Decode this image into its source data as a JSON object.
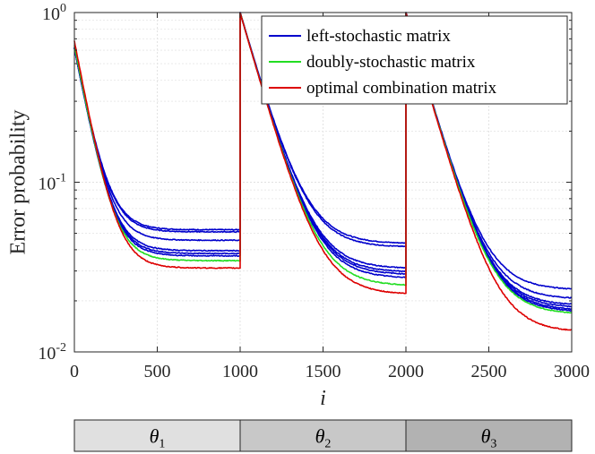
{
  "chart_data": {
    "type": "line",
    "title": "",
    "xlabel": "i",
    "ylabel": "Error probability",
    "xlim": [
      0,
      3000
    ],
    "ylim_log10": [
      -2,
      0
    ],
    "y_scale": "log",
    "grid": true,
    "x_ticks": [
      {
        "value": 0,
        "label": "0"
      },
      {
        "value": 500,
        "label": "500"
      },
      {
        "value": 1000,
        "label": "1000"
      },
      {
        "value": 1500,
        "label": "1500"
      },
      {
        "value": 2000,
        "label": "2000"
      },
      {
        "value": 2500,
        "label": "2500"
      },
      {
        "value": 3000,
        "label": "3000"
      }
    ],
    "y_ticks": [
      {
        "value": 0.01,
        "base": "10",
        "exp": "-2"
      },
      {
        "value": 0.1,
        "base": "10",
        "exp": "-1"
      },
      {
        "value": 1,
        "base": "10",
        "exp": "0"
      }
    ],
    "legend": {
      "position": "top-right",
      "entries": [
        {
          "label": "left-stochastic matrix",
          "color": "#0000cc"
        },
        {
          "label": "doubly-stochastic matrix",
          "color": "#22dd22"
        },
        {
          "label": "optimal combination matrix",
          "color": "#dd0000"
        }
      ]
    },
    "curve_model": "value(t) = floor + (start - floor) * exp(-(t - segment_start) / tau)",
    "segments": [
      {
        "start": 0,
        "end": 1000,
        "tau": 82
      },
      {
        "start": 1000,
        "end": 2000,
        "tau": 125
      },
      {
        "start": 2000,
        "end": 3000,
        "tau": 125
      }
    ],
    "series": [
      {
        "name": "left-stochastic matrix",
        "color": "#0000cc",
        "starts": [
          0.62,
          1.0,
          1.0
        ],
        "floors": [
          0.0525,
          0.0435,
          0.0232
        ]
      },
      {
        "name": "left-stochastic matrix",
        "color": "#0000cc",
        "starts": [
          0.62,
          1.0,
          1.0
        ],
        "floors": [
          0.051,
          0.0415,
          0.0205
        ]
      },
      {
        "name": "left-stochastic matrix",
        "color": "#0000cc",
        "starts": [
          0.62,
          1.0,
          1.0
        ],
        "floors": [
          0.0455,
          0.031,
          0.0188
        ]
      },
      {
        "name": "left-stochastic matrix",
        "color": "#0000cc",
        "starts": [
          0.62,
          1.0,
          1.0
        ],
        "floors": [
          0.0395,
          0.0295,
          0.0182
        ]
      },
      {
        "name": "left-stochastic matrix",
        "color": "#0000cc",
        "starts": [
          0.62,
          1.0,
          1.0
        ],
        "floors": [
          0.038,
          0.0285,
          0.0176
        ]
      },
      {
        "name": "left-stochastic matrix",
        "color": "#0000cc",
        "starts": [
          0.62,
          1.0,
          1.0
        ],
        "floors": [
          0.0368,
          0.0272,
          0.0172
        ]
      },
      {
        "name": "doubly-stochastic matrix",
        "color": "#22dd22",
        "starts": [
          0.64,
          1.0,
          1.0
        ],
        "floors": [
          0.0345,
          0.0245,
          0.0167
        ]
      },
      {
        "name": "optimal combination matrix",
        "color": "#dd0000",
        "starts": [
          0.68,
          1.0,
          1.0
        ],
        "floors": [
          0.0312,
          0.0218,
          0.0131
        ]
      }
    ]
  },
  "state_bar": [
    {
      "symbol": "θ",
      "sub": "1",
      "start": 0,
      "end": 1000,
      "color": "#e0e0e0"
    },
    {
      "symbol": "θ",
      "sub": "2",
      "start": 1000,
      "end": 2000,
      "color": "#c8c8c8"
    },
    {
      "symbol": "θ",
      "sub": "3",
      "start": 2000,
      "end": 3000,
      "color": "#b2b2b2"
    }
  ]
}
